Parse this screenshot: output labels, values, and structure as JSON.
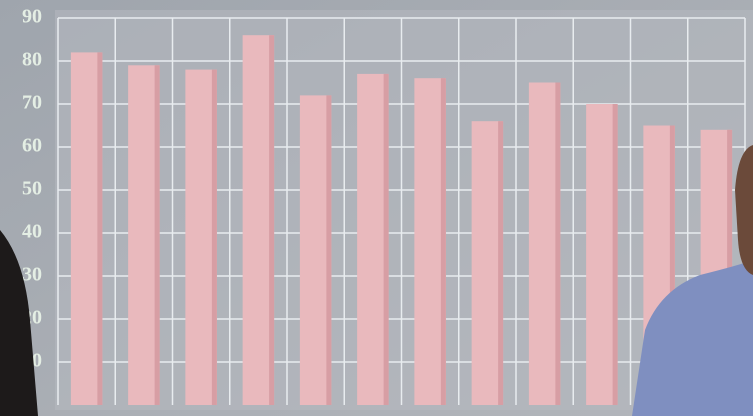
{
  "chart_data": {
    "type": "bar",
    "categories": [
      null,
      null,
      null,
      null,
      null,
      null,
      null,
      null,
      null,
      null,
      null,
      null
    ],
    "values": [
      82,
      79,
      78,
      86,
      72,
      77,
      76,
      66,
      75,
      70,
      65,
      64
    ],
    "color": "#e9b9bd",
    "ylim": [
      0,
      90
    ],
    "yticks": [
      10,
      20,
      30,
      40,
      50,
      60,
      70,
      80,
      90
    ],
    "grid": true
  }
}
